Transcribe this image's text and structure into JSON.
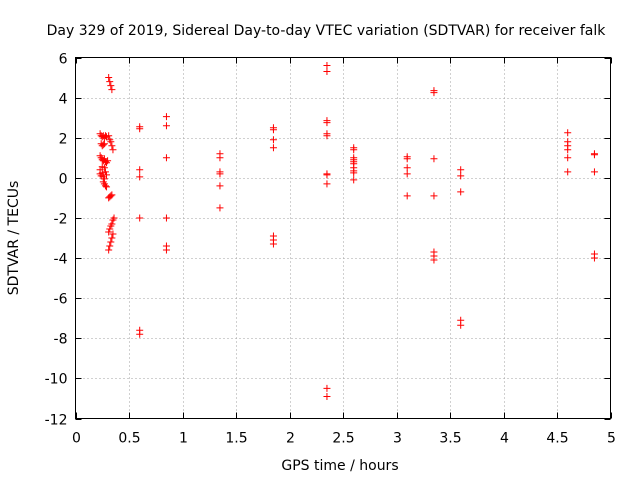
{
  "chart_data": {
    "type": "scatter",
    "title": "Day 329 of 2019, Sidereal Day-to-day VTEC variation (SDTVAR) for receiver falk",
    "xlabel": "GPS time / hours",
    "ylabel": "SDTVAR / TECUs",
    "xlim": [
      0,
      5
    ],
    "ylim": [
      -12,
      6
    ],
    "xticks": [
      0,
      0.5,
      1,
      1.5,
      2,
      2.5,
      3,
      3.5,
      4,
      4.5,
      5
    ],
    "xtick_labels": [
      "0",
      "0.5",
      "1",
      "1.5",
      "2",
      "2.5",
      "3",
      "3.5",
      "4",
      "4.5",
      "5"
    ],
    "yticks": [
      -12,
      -10,
      -8,
      -6,
      -4,
      -2,
      0,
      2,
      4,
      6
    ],
    "ytick_labels": [
      "-12",
      "-10",
      "-8",
      "-6",
      "-4",
      "-2",
      "0",
      "2",
      "4",
      "6"
    ],
    "grid": true,
    "marker": "plus",
    "color": "#ff0000",
    "series": [
      {
        "name": "SDTVAR",
        "points": [
          [
            0.23,
            2.2
          ],
          [
            0.24,
            2.1
          ],
          [
            0.25,
            2.05
          ],
          [
            0.26,
            2.1
          ],
          [
            0.27,
            2.0
          ],
          [
            0.28,
            2.1
          ],
          [
            0.29,
            2.05
          ],
          [
            0.24,
            1.7
          ],
          [
            0.25,
            1.6
          ],
          [
            0.26,
            1.65
          ],
          [
            0.27,
            1.7
          ],
          [
            0.23,
            1.1
          ],
          [
            0.24,
            1.0
          ],
          [
            0.25,
            0.9
          ],
          [
            0.26,
            0.85
          ],
          [
            0.27,
            0.95
          ],
          [
            0.28,
            0.8
          ],
          [
            0.29,
            0.75
          ],
          [
            0.3,
            0.85
          ],
          [
            0.23,
            0.2
          ],
          [
            0.24,
            0.1
          ],
          [
            0.25,
            0.25
          ],
          [
            0.26,
            0.05
          ],
          [
            0.27,
            -0.05
          ],
          [
            0.28,
            0.3
          ],
          [
            0.29,
            0.15
          ],
          [
            0.23,
            0.4
          ],
          [
            0.25,
            0.55
          ],
          [
            0.27,
            0.5
          ],
          [
            0.26,
            -0.2
          ],
          [
            0.27,
            -0.3
          ],
          [
            0.28,
            -0.4
          ],
          [
            0.29,
            -0.45
          ],
          [
            0.31,
            5.0
          ],
          [
            0.32,
            4.8
          ],
          [
            0.33,
            4.6
          ],
          [
            0.34,
            4.4
          ],
          [
            0.31,
            2.1
          ],
          [
            0.32,
            1.9
          ],
          [
            0.33,
            1.8
          ],
          [
            0.34,
            1.6
          ],
          [
            0.35,
            1.4
          ],
          [
            0.31,
            -1.0
          ],
          [
            0.32,
            -0.95
          ],
          [
            0.33,
            -0.9
          ],
          [
            0.34,
            -0.85
          ],
          [
            0.31,
            -2.7
          ],
          [
            0.32,
            -2.55
          ],
          [
            0.33,
            -2.4
          ],
          [
            0.34,
            -2.3
          ],
          [
            0.35,
            -2.1
          ],
          [
            0.36,
            -2.0
          ],
          [
            0.31,
            -3.6
          ],
          [
            0.32,
            -3.4
          ],
          [
            0.33,
            -3.2
          ],
          [
            0.34,
            -3.0
          ],
          [
            0.35,
            -2.8
          ],
          [
            0.6,
            2.55
          ],
          [
            0.6,
            2.45
          ],
          [
            0.6,
            0.4
          ],
          [
            0.6,
            0.05
          ],
          [
            0.6,
            -2.0
          ],
          [
            0.6,
            -7.6
          ],
          [
            0.6,
            -7.8
          ],
          [
            0.85,
            3.05
          ],
          [
            0.85,
            2.6
          ],
          [
            0.85,
            1.0
          ],
          [
            0.85,
            -2.0
          ],
          [
            0.85,
            -3.4
          ],
          [
            0.85,
            -3.6
          ],
          [
            1.35,
            1.2
          ],
          [
            1.35,
            1.0
          ],
          [
            1.35,
            0.3
          ],
          [
            1.35,
            0.2
          ],
          [
            1.35,
            -0.4
          ],
          [
            1.35,
            -1.5
          ],
          [
            1.85,
            2.5
          ],
          [
            1.85,
            2.4
          ],
          [
            1.85,
            1.9
          ],
          [
            1.85,
            1.5
          ],
          [
            1.85,
            -2.9
          ],
          [
            1.85,
            -3.1
          ],
          [
            1.85,
            -3.3
          ],
          [
            2.35,
            5.6
          ],
          [
            2.35,
            5.3
          ],
          [
            2.35,
            2.85
          ],
          [
            2.35,
            2.75
          ],
          [
            2.35,
            2.2
          ],
          [
            2.35,
            2.1
          ],
          [
            2.35,
            0.2
          ],
          [
            2.35,
            0.15
          ],
          [
            2.35,
            -0.3
          ],
          [
            2.35,
            -10.5
          ],
          [
            2.35,
            -10.9
          ],
          [
            2.6,
            1.5
          ],
          [
            2.6,
            1.4
          ],
          [
            2.6,
            1.0
          ],
          [
            2.6,
            0.9
          ],
          [
            2.6,
            0.8
          ],
          [
            2.6,
            0.7
          ],
          [
            2.6,
            0.5
          ],
          [
            2.6,
            0.35
          ],
          [
            2.6,
            0.25
          ],
          [
            2.6,
            -0.1
          ],
          [
            3.1,
            1.05
          ],
          [
            3.1,
            0.95
          ],
          [
            3.1,
            0.5
          ],
          [
            3.1,
            0.2
          ],
          [
            3.1,
            -0.9
          ],
          [
            3.35,
            4.35
          ],
          [
            3.35,
            4.25
          ],
          [
            3.35,
            0.95
          ],
          [
            3.35,
            -0.9
          ],
          [
            3.35,
            -3.7
          ],
          [
            3.35,
            -3.9
          ],
          [
            3.35,
            -4.1
          ],
          [
            3.6,
            0.4
          ],
          [
            3.6,
            0.1
          ],
          [
            3.6,
            -0.7
          ],
          [
            3.6,
            -7.1
          ],
          [
            3.6,
            -7.35
          ],
          [
            4.6,
            2.25
          ],
          [
            4.6,
            1.8
          ],
          [
            4.6,
            1.6
          ],
          [
            4.6,
            1.4
          ],
          [
            4.6,
            1.0
          ],
          [
            4.6,
            0.3
          ],
          [
            4.85,
            1.2
          ],
          [
            4.85,
            1.15
          ],
          [
            4.85,
            0.3
          ],
          [
            4.85,
            -3.8
          ],
          [
            4.85,
            -4.0
          ]
        ]
      }
    ]
  }
}
